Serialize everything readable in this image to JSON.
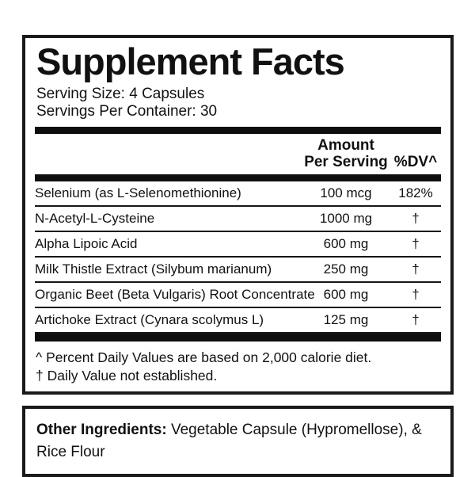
{
  "label": {
    "title": "Supplement Facts",
    "serving_size": "Serving Size: 4 Capsules",
    "servings_per_container": "Servings Per Container: 30",
    "columns": {
      "amount_line1": "Amount",
      "amount_line2": "Per Serving",
      "dv": "%DV^"
    },
    "rows": [
      {
        "name": "Selenium (as L-Selenomethionine)",
        "amount": "100 mcg",
        "dv": "182%"
      },
      {
        "name": "N-Acetyl-L-Cysteine",
        "amount": "1000 mg",
        "dv": "†"
      },
      {
        "name": "Alpha Lipoic Acid",
        "amount": "600 mg",
        "dv": "†"
      },
      {
        "name": "Milk Thistle Extract (Silybum marianum)",
        "amount": "250 mg",
        "dv": "†"
      },
      {
        "name": "Organic Beet (Beta Vulgaris) Root Concentrate",
        "amount": "600 mg",
        "dv": "†"
      },
      {
        "name": "Artichoke Extract (Cynara scolymus L)",
        "amount": "125 mg",
        "dv": "†"
      }
    ],
    "footnotes": [
      "^ Percent Daily Values are based on 2,000 calorie diet.",
      "† Daily Value not established."
    ],
    "colors": {
      "ink": "#111111",
      "bar": "#0e0e0e",
      "background": "#ffffff"
    }
  },
  "other_ingredients": {
    "label": "Other Ingredients:",
    "text": " Vegetable Capsule (Hypromellose), & Rice Flour"
  }
}
